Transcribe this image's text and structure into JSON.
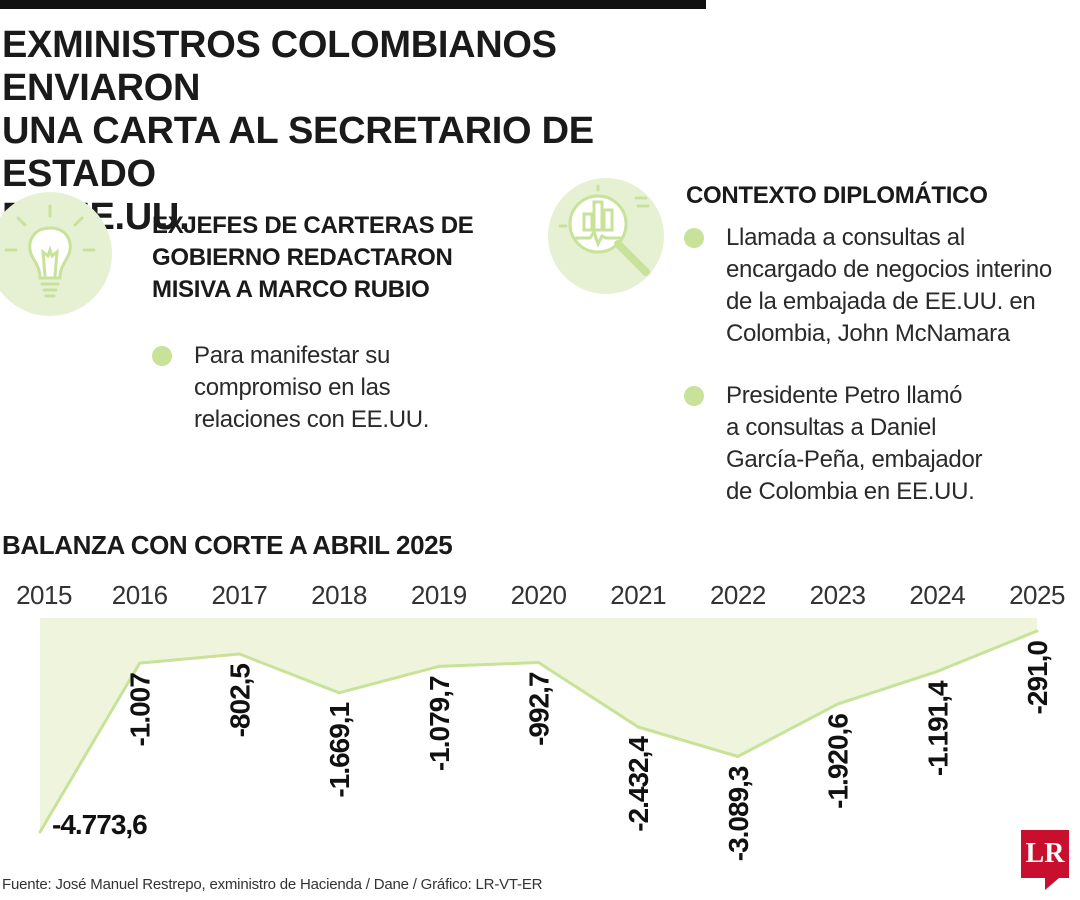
{
  "headline": {
    "lines": [
      "EXMINISTROS COLOMBIANOS ENVIARON",
      "UNA CARTA AL SECRETARIO DE ESTADO",
      "DE EE.UU."
    ]
  },
  "section_left": {
    "title_lines": [
      "EXJEFES DE CARTERAS DE",
      "GOBIERNO REDACTARON",
      "MISIVA A MARCO RUBIO"
    ],
    "bullets": [
      {
        "lines": [
          "Para manifestar su",
          "compromiso en las",
          "relaciones con EE.UU."
        ]
      }
    ],
    "icon": "lightbulb-icon"
  },
  "section_right": {
    "title": "CONTEXTO DIPLOMÁTICO",
    "bullets": [
      {
        "lines": [
          "Llamada a consultas al",
          "encargado de negocios interino",
          "de la embajada de EE.UU. en",
          "Colombia, John McNamara"
        ]
      },
      {
        "lines": [
          "Presidente Petro llamó",
          "a consultas a Daniel",
          "García-Peña, embajador",
          "de Colombia en EE.UU."
        ]
      }
    ],
    "icon": "magnifier-chart-icon"
  },
  "chart_data": {
    "type": "area",
    "title": "BALANZA CON CORTE A ABRIL 2025",
    "x": [
      "2015",
      "2016",
      "2017",
      "2018",
      "2019",
      "2020",
      "2021",
      "2022",
      "2023",
      "2024",
      "2025"
    ],
    "values": [
      -4773.6,
      -1007,
      -802.5,
      -1669.1,
      -1079.7,
      -992.7,
      -2432.4,
      -3089.3,
      -1920.6,
      -1191.4,
      -291.0
    ],
    "labels": [
      "-4.773,6",
      "-1.007",
      "-802,5",
      "-1.669,1",
      "-1.079,7",
      "-992,7",
      "-2.432,4",
      "-3.089,3",
      "-1.920,6",
      "-1.191,4",
      "-291,0"
    ],
    "ylim": [
      -4773.6,
      0
    ],
    "colors": {
      "fill": "#eef5dc",
      "line": "#c9e29a"
    }
  },
  "source": "Fuente: José Manuel Restrepo, exministro de Hacienda / Dane / Gráfico: LR-VT-ER",
  "logo": "LR",
  "colors": {
    "accent_green": "#c9e29a",
    "icon_bg": "#e6f1d3",
    "brand_red": "#c8102e"
  }
}
